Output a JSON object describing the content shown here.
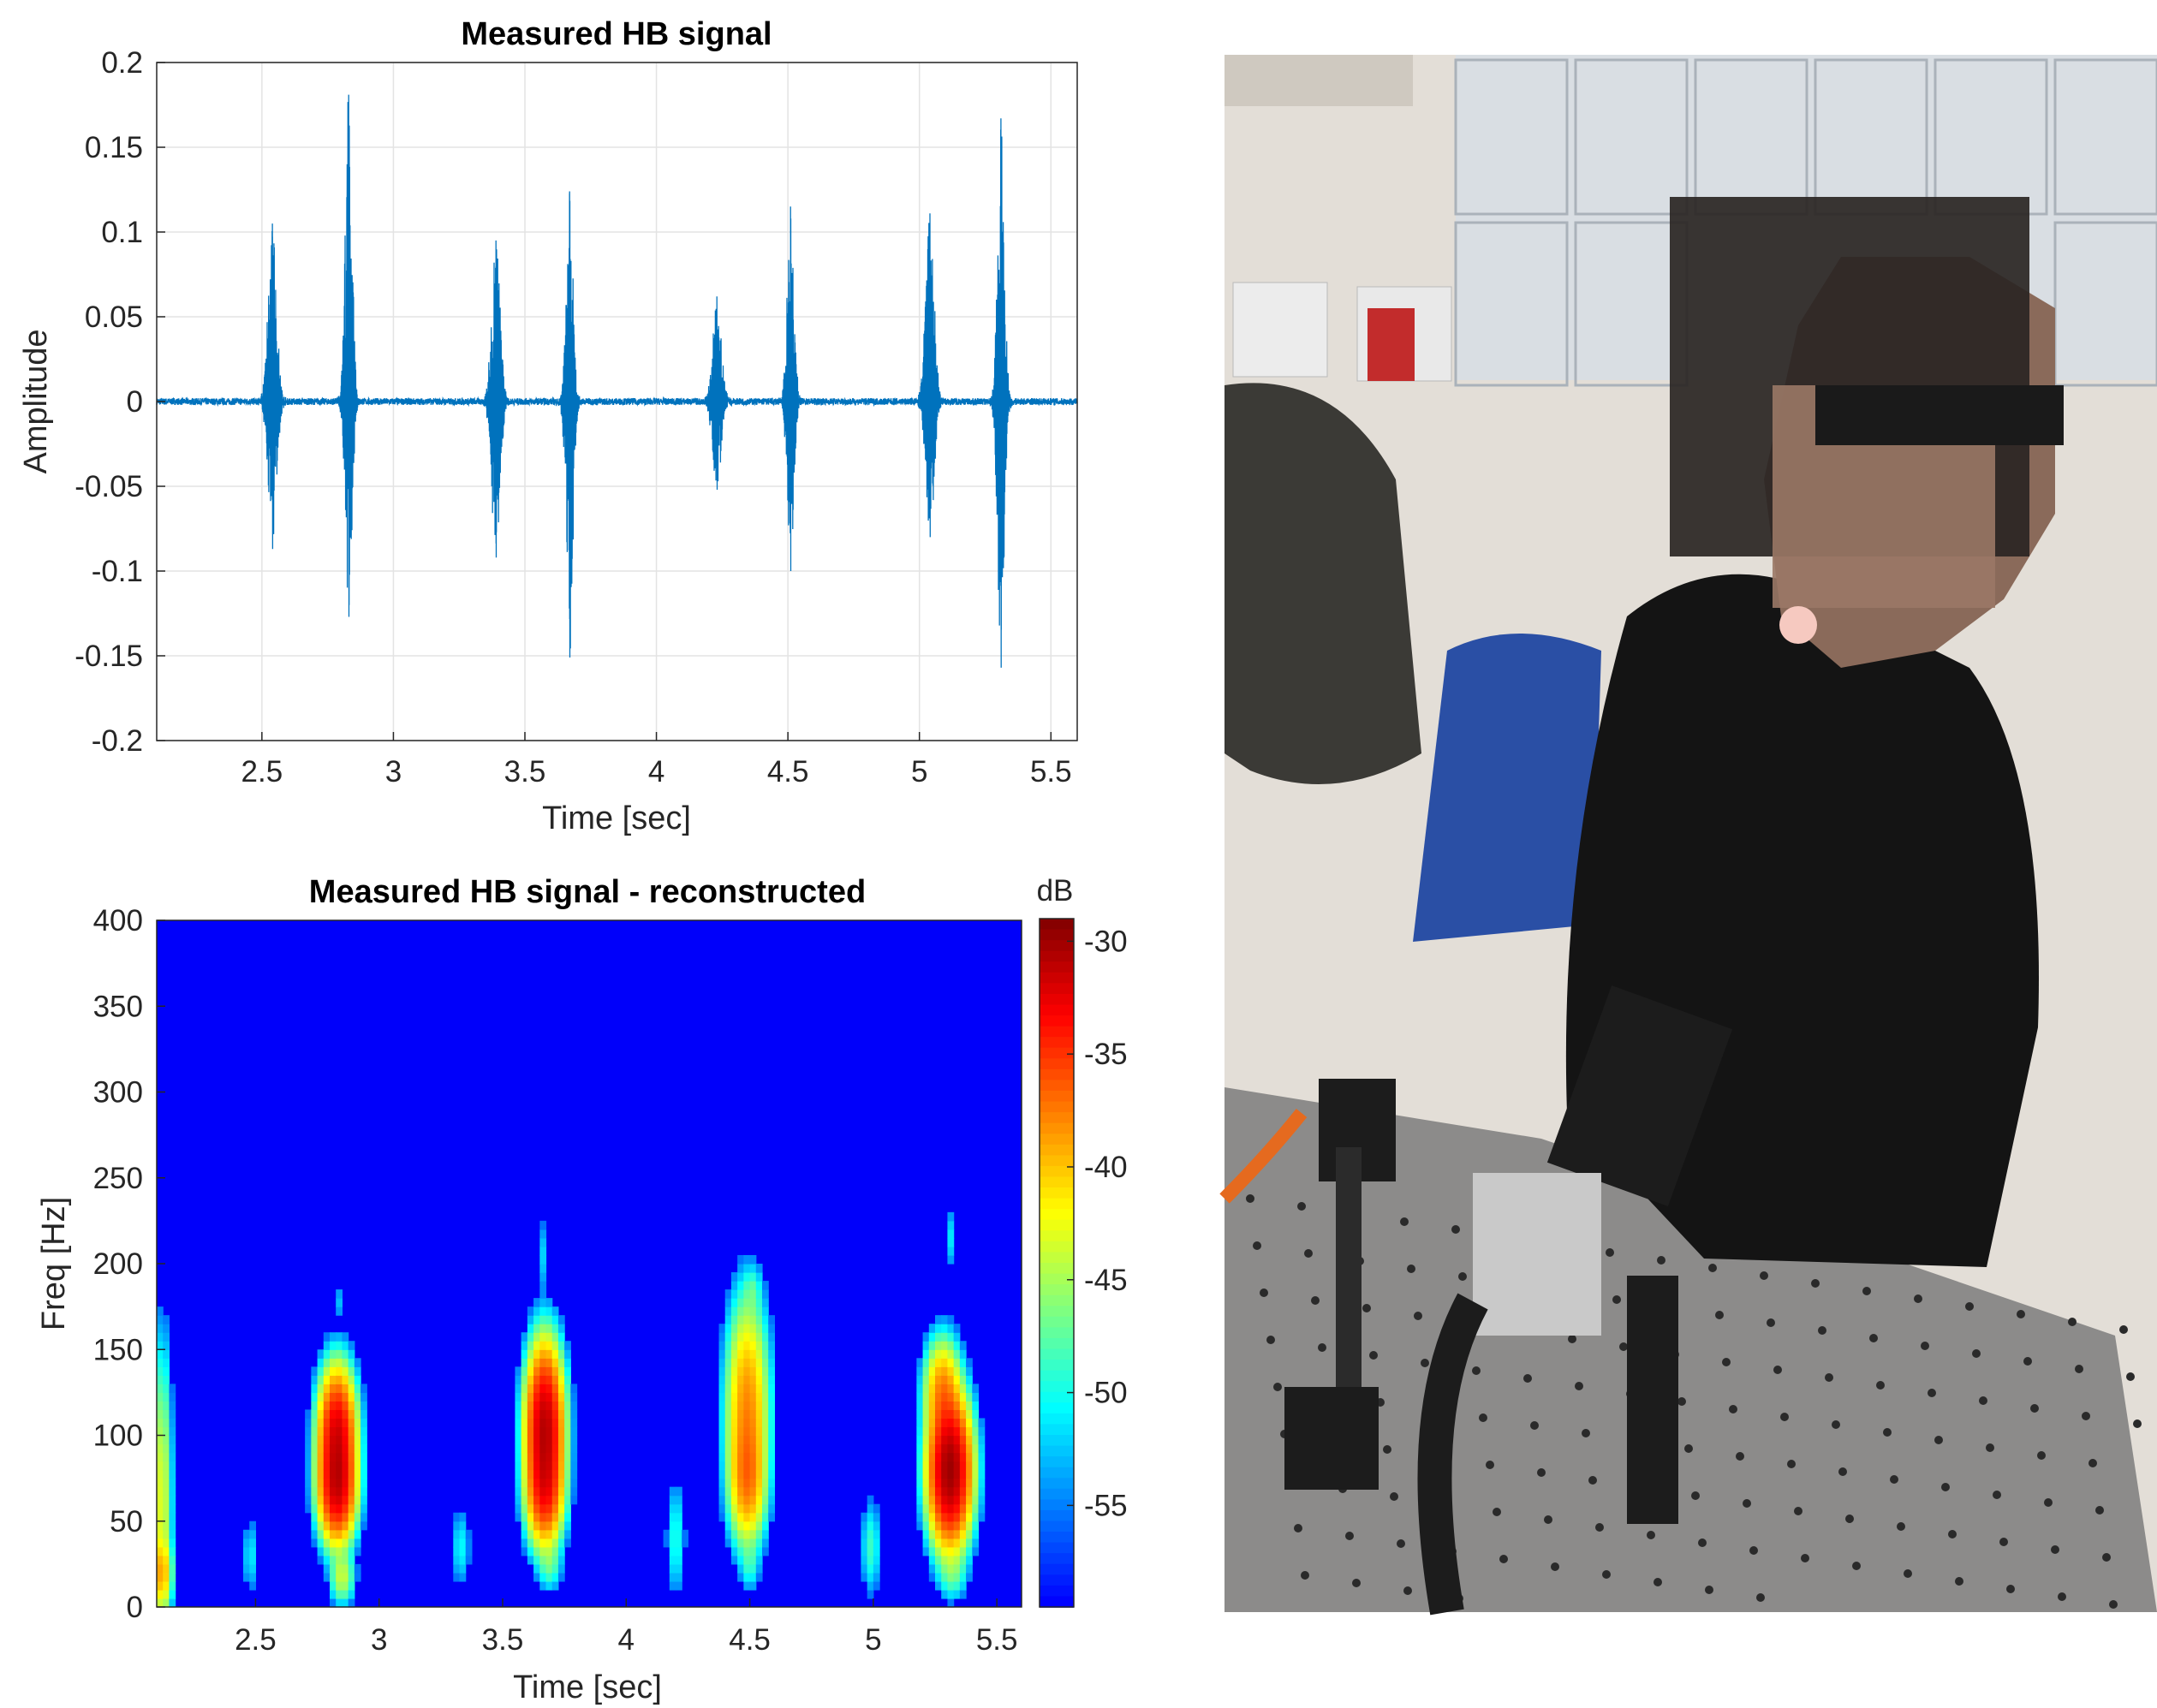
{
  "chart_data": [
    {
      "type": "line",
      "title": "Measured HB signal",
      "xlabel": "Time [sec]",
      "ylabel": "Amplitude",
      "xlim": [
        2.1,
        5.6
      ],
      "ylim": [
        -0.2,
        0.2
      ],
      "xticks": [
        "2.5",
        "3",
        "3.5",
        "4",
        "4.5",
        "5",
        "5.5"
      ],
      "yticks": [
        "0.2",
        "0.15",
        "0.1",
        "0.05",
        "0",
        "-0.05",
        "-0.1",
        "-0.15",
        "-0.2"
      ],
      "grid": true,
      "line_color": "#0072BD",
      "baseline_noise": 0.002,
      "bursts": [
        {
          "t": 2.54,
          "pos": 0.105,
          "neg": -0.087,
          "width": 0.05
        },
        {
          "t": 2.83,
          "pos": 0.181,
          "neg": -0.127,
          "width": 0.04
        },
        {
          "t": 3.39,
          "pos": 0.095,
          "neg": -0.092,
          "width": 0.05
        },
        {
          "t": 3.67,
          "pos": 0.124,
          "neg": -0.151,
          "width": 0.04
        },
        {
          "t": 4.23,
          "pos": 0.062,
          "neg": -0.052,
          "width": 0.05
        },
        {
          "t": 4.51,
          "pos": 0.115,
          "neg": -0.1,
          "width": 0.04
        },
        {
          "t": 5.04,
          "pos": 0.111,
          "neg": -0.08,
          "width": 0.05
        },
        {
          "t": 5.31,
          "pos": 0.167,
          "neg": -0.157,
          "width": 0.04
        }
      ]
    },
    {
      "type": "heatmap",
      "title": "Measured HB signal - reconstructed",
      "xlabel": "Time [sec]",
      "ylabel": "Freq [Hz]",
      "xlim": [
        2.1,
        5.6
      ],
      "ylim": [
        0,
        400
      ],
      "xticks": [
        "2.5",
        "3",
        "3.5",
        "4",
        "4.5",
        "5",
        "5.5"
      ],
      "yticks": [
        "400",
        "350",
        "300",
        "250",
        "200",
        "150",
        "100",
        "50",
        "0"
      ],
      "colorbar": {
        "label": "dB",
        "range": [
          -59.5,
          -29
        ],
        "ticks": [
          "-30",
          "-35",
          "-40",
          "-45",
          "-50",
          "-55"
        ]
      },
      "floor_db": -59.5,
      "blobs": [
        {
          "t": 2.12,
          "f": 60,
          "st": 0.02,
          "sf": 45,
          "db": -43
        },
        {
          "t": 2.12,
          "f": 20,
          "st": 0.02,
          "sf": 10,
          "db": -40
        },
        {
          "t": 2.48,
          "f": 30,
          "st": 0.02,
          "sf": 12,
          "db": -52
        },
        {
          "t": 2.83,
          "f": 100,
          "st": 0.035,
          "sf": 18,
          "db": -32
        },
        {
          "t": 2.83,
          "f": 70,
          "st": 0.035,
          "sf": 15,
          "db": -32
        },
        {
          "t": 2.85,
          "f": 18,
          "st": 0.025,
          "sf": 8,
          "db": -44
        },
        {
          "t": 2.84,
          "f": 178,
          "st": 0.01,
          "sf": 6,
          "db": -54
        },
        {
          "t": 3.33,
          "f": 35,
          "st": 0.02,
          "sf": 12,
          "db": -51
        },
        {
          "t": 3.67,
          "f": 105,
          "st": 0.035,
          "sf": 22,
          "db": -31
        },
        {
          "t": 3.67,
          "f": 70,
          "st": 0.035,
          "sf": 16,
          "db": -34
        },
        {
          "t": 3.69,
          "f": 25,
          "st": 0.025,
          "sf": 8,
          "db": -48
        },
        {
          "t": 3.66,
          "f": 205,
          "st": 0.01,
          "sf": 12,
          "db": -53
        },
        {
          "t": 4.2,
          "f": 40,
          "st": 0.02,
          "sf": 18,
          "db": -50
        },
        {
          "t": 4.49,
          "f": 115,
          "st": 0.04,
          "sf": 30,
          "db": -38
        },
        {
          "t": 4.49,
          "f": 75,
          "st": 0.035,
          "sf": 18,
          "db": -38
        },
        {
          "t": 4.5,
          "f": 25,
          "st": 0.02,
          "sf": 8,
          "db": -50
        },
        {
          "t": 4.51,
          "f": 185,
          "st": 0.02,
          "sf": 7,
          "db": -50
        },
        {
          "t": 4.99,
          "f": 35,
          "st": 0.02,
          "sf": 14,
          "db": -49
        },
        {
          "t": 5.31,
          "f": 80,
          "st": 0.04,
          "sf": 20,
          "db": -30
        },
        {
          "t": 5.28,
          "f": 125,
          "st": 0.035,
          "sf": 15,
          "db": -38
        },
        {
          "t": 5.32,
          "f": 20,
          "st": 0.03,
          "sf": 8,
          "db": -48
        },
        {
          "t": 5.31,
          "f": 215,
          "st": 0.01,
          "sf": 10,
          "db": -52
        }
      ]
    }
  ],
  "photo": {
    "description_free": true,
    "wall_color": "#e4e0da",
    "table_color": "#8c8b8a",
    "shirt_color": "#141414",
    "chair_color": "#2a4fa5"
  }
}
